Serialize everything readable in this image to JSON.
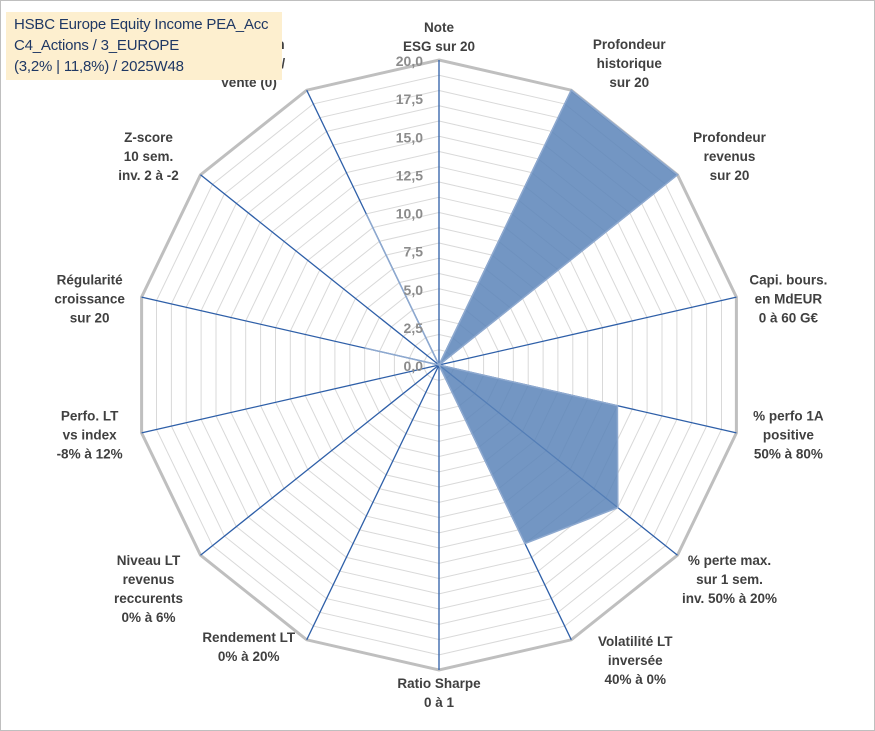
{
  "title_lines": [
    "HSBC Europe Equity Income PEA_Acc",
    "C4_Actions / 3_EUROPE",
    "(3,2% | 11,8%) / 2025W48"
  ],
  "chart_data": {
    "type": "radar",
    "title": "HSBC Europe Equity Income PEA_Acc",
    "rlim": [
      0,
      20
    ],
    "grid": true,
    "ticks": [
      "0,0",
      "2,5",
      "5,0",
      "7,5",
      "10,0",
      "12,5",
      "15,0",
      "17,5",
      "20,0"
    ],
    "axes": [
      {
        "label": [
          "Note",
          "ESG sur 20"
        ],
        "value": 0
      },
      {
        "label": [
          "Profondeur",
          "historique",
          "sur 20"
        ],
        "value": 20
      },
      {
        "label": [
          "Profondeur",
          "revenus",
          "sur 20"
        ],
        "value": 20
      },
      {
        "label": [
          "Capi. bours.",
          "en MdEUR",
          "0 à 60 G€"
        ],
        "value": 0
      },
      {
        "label": [
          "% perfo 1A",
          "positive",
          "50% à 80%"
        ],
        "value": 12
      },
      {
        "label": [
          "% perte max.",
          "sur 1 sem.",
          "inv. 50% à 20%"
        ],
        "value": 15
      },
      {
        "label": [
          "Volatilité LT",
          "inversée",
          "40% à 0%"
        ],
        "value": 13
      },
      {
        "label": [
          "Ratio Sharpe",
          "0 à 1"
        ],
        "value": 0
      },
      {
        "label": [
          "Rendement LT",
          "0% à 20%"
        ],
        "value": 0
      },
      {
        "label": [
          "Niveau LT",
          "revenus",
          "reccurents",
          "0% à 6%"
        ],
        "value": 0
      },
      {
        "label": [
          "Perfo. LT",
          "vs index",
          "-8% à 12%"
        ],
        "value": 0
      },
      {
        "label": [
          "Régularité",
          "croissance",
          "sur 20"
        ],
        "value": 5
      },
      {
        "label": [
          "Z-score",
          "10 sem.",
          "inv. 2 à -2"
        ],
        "value": 0
      },
      {
        "label": [
          "Momentum",
          "Achat (20) /",
          "Vente (0)"
        ],
        "value": 11
      }
    ],
    "colors": {
      "fill": "#5b84b8",
      "fill_stroke": "#8ea9cf",
      "spoke": "#2e5fa8",
      "grid_outer": "#bfbfbf",
      "grid_inner": "#d9d9d9",
      "axis_label": "#404040",
      "tick_label": "#8c8c8c",
      "title": "#1f3864",
      "title_bg": "#fdefcf"
    }
  }
}
